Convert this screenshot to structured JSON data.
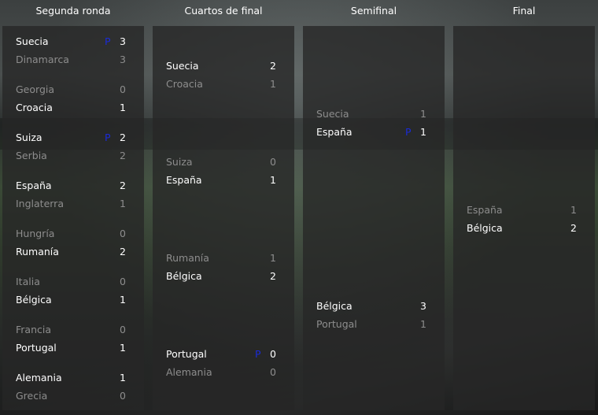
{
  "rounds": [
    {
      "title": "Segunda ronda",
      "matches": [
        {
          "teams": [
            {
              "name": "Suecia",
              "score": 3,
              "pen": "P",
              "winner": true
            },
            {
              "name": "Dinamarca",
              "score": 3,
              "winner": false
            }
          ]
        },
        {
          "teams": [
            {
              "name": "Georgia",
              "score": 0,
              "winner": false
            },
            {
              "name": "Croacia",
              "score": 1,
              "winner": true
            }
          ]
        },
        {
          "teams": [
            {
              "name": "Suiza",
              "score": 2,
              "pen": "P",
              "winner": true
            },
            {
              "name": "Serbia",
              "score": 2,
              "winner": false
            }
          ]
        },
        {
          "teams": [
            {
              "name": "España",
              "score": 2,
              "winner": true
            },
            {
              "name": "Inglaterra",
              "score": 1,
              "winner": false
            }
          ]
        },
        {
          "teams": [
            {
              "name": "Hungría",
              "score": 0,
              "winner": false
            },
            {
              "name": "Rumanía",
              "score": 2,
              "winner": true
            }
          ]
        },
        {
          "teams": [
            {
              "name": "Italia",
              "score": 0,
              "winner": false
            },
            {
              "name": "Bélgica",
              "score": 1,
              "winner": true
            }
          ]
        },
        {
          "teams": [
            {
              "name": "Francia",
              "score": 0,
              "winner": false
            },
            {
              "name": "Portugal",
              "score": 1,
              "winner": true
            }
          ]
        },
        {
          "teams": [
            {
              "name": "Alemania",
              "score": 1,
              "winner": true
            },
            {
              "name": "Grecia",
              "score": 0,
              "winner": false
            }
          ]
        }
      ]
    },
    {
      "title": "Cuartos de final",
      "matches": [
        {
          "teams": [
            {
              "name": "Suecia",
              "score": 2,
              "winner": true
            },
            {
              "name": "Croacia",
              "score": 1,
              "winner": false
            }
          ]
        },
        {
          "teams": [
            {
              "name": "Suiza",
              "score": 0,
              "winner": false
            },
            {
              "name": "España",
              "score": 1,
              "winner": true
            }
          ]
        },
        {
          "teams": [
            {
              "name": "Rumanía",
              "score": 1,
              "winner": false
            },
            {
              "name": "Bélgica",
              "score": 2,
              "winner": true
            }
          ]
        },
        {
          "teams": [
            {
              "name": "Portugal",
              "score": 0,
              "pen": "P",
              "winner": true
            },
            {
              "name": "Alemania",
              "score": 0,
              "winner": false
            }
          ]
        }
      ]
    },
    {
      "title": "Semifinal",
      "matches": [
        {
          "teams": [
            {
              "name": "Suecia",
              "score": 1,
              "winner": false
            },
            {
              "name": "España",
              "score": 1,
              "pen": "P",
              "winner": true
            }
          ]
        },
        {
          "teams": [
            {
              "name": "Bélgica",
              "score": 3,
              "winner": true
            },
            {
              "name": "Portugal",
              "score": 1,
              "winner": false
            }
          ]
        }
      ]
    },
    {
      "title": "Final",
      "matches": [
        {
          "teams": [
            {
              "name": "España",
              "score": 1,
              "winner": false
            },
            {
              "name": "Bélgica",
              "score": 2,
              "winner": true
            }
          ]
        }
      ]
    }
  ]
}
